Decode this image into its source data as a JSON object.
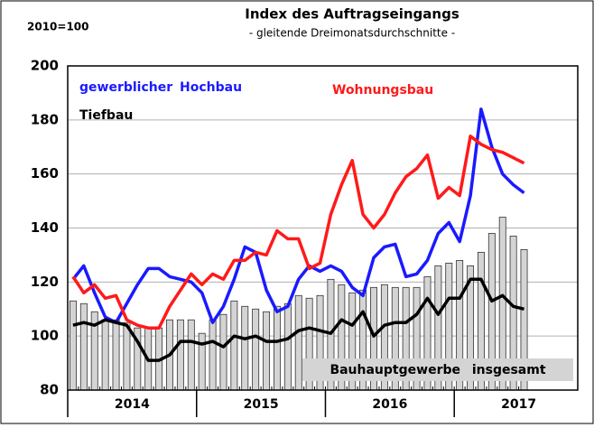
{
  "chart_data": {
    "type": "bar",
    "title": "Index des Auftragseingangs",
    "subtitle": "- gleitende Dreimonatsdurchschnitte -",
    "note": "2010=100",
    "years": [
      "2014",
      "2015",
      "2016",
      "2017"
    ],
    "categories": [
      null,
      null,
      null,
      null,
      null,
      null,
      null,
      null,
      null,
      null,
      null,
      null,
      null,
      null,
      null,
      null,
      null,
      null,
      null,
      null,
      null,
      null,
      null,
      null,
      null,
      null,
      null,
      null,
      null,
      null,
      null,
      null,
      null,
      null,
      null,
      null,
      null,
      null,
      null,
      null,
      null,
      null,
      null
    ],
    "ylim": [
      80,
      200
    ],
    "yticks": [
      80,
      100,
      120,
      140,
      160,
      180,
      200
    ],
    "grid": true,
    "series": [
      {
        "name": "Bauhauptgewerbe insgesamt",
        "type": "bar",
        "color": "#d4d4d4",
        "values": [
          113,
          112,
          109,
          106,
          106,
          105,
          103,
          103,
          103,
          106,
          106,
          106,
          101,
          106,
          108,
          113,
          111,
          110,
          109,
          111,
          112,
          115,
          114,
          115,
          121,
          119,
          116,
          117,
          118,
          119,
          118,
          118,
          118,
          122,
          126,
          127,
          128,
          126,
          131,
          138,
          144,
          137,
          132
        ]
      },
      {
        "name": "gewerblicher Hochbau",
        "type": "line",
        "color": "#1a1aff",
        "values": [
          121,
          126,
          116,
          107,
          105,
          112,
          119,
          125,
          125,
          122,
          121,
          120,
          116,
          105,
          111,
          121,
          133,
          131,
          117,
          109,
          111,
          121,
          126,
          124,
          126,
          124,
          118,
          115,
          129,
          133,
          134,
          122,
          123,
          128,
          138,
          142,
          135,
          152,
          184,
          170,
          160,
          156,
          153
        ]
      },
      {
        "name": "Wohnungsbau",
        "type": "line",
        "color": "#ff1a1a",
        "values": [
          122,
          116,
          119,
          114,
          115,
          106,
          104,
          103,
          103,
          111,
          117,
          123,
          119,
          123,
          121,
          128,
          128,
          131,
          130,
          139,
          136,
          136,
          125,
          127,
          145,
          156,
          165,
          145,
          140,
          145,
          153,
          159,
          162,
          167,
          151,
          155,
          152,
          174,
          171,
          169,
          168,
          166,
          164
        ]
      },
      {
        "name": "Tiefbau",
        "type": "line",
        "color": "#000000",
        "values": [
          104,
          105,
          104,
          106,
          105,
          104,
          98,
          91,
          91,
          93,
          98,
          98,
          97,
          98,
          96,
          100,
          99,
          100,
          98,
          98,
          99,
          102,
          103,
          102,
          101,
          106,
          104,
          109,
          100,
          104,
          105,
          105,
          108,
          114,
          108,
          114,
          114,
          121,
          121,
          113,
          115,
          111,
          110
        ]
      }
    ]
  }
}
